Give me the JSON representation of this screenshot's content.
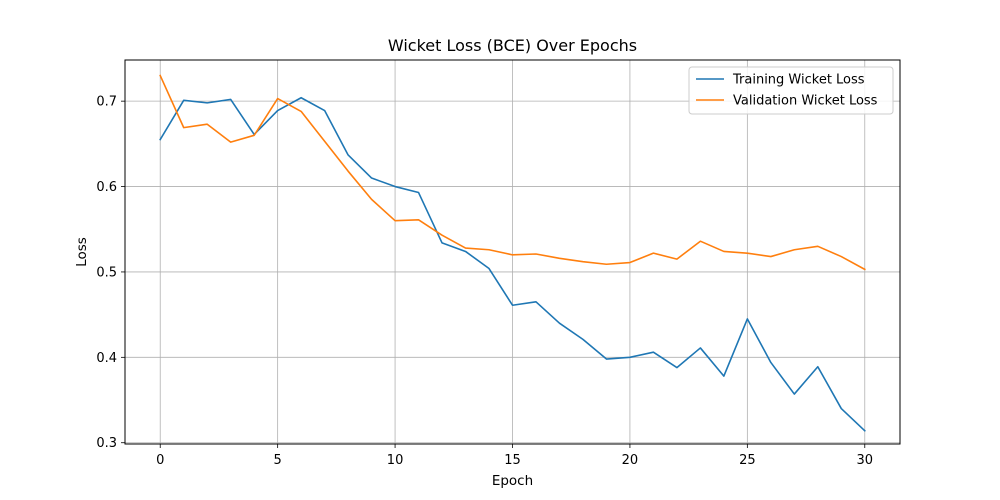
{
  "chart_data": {
    "type": "line",
    "title": "Wicket Loss (BCE) Over Epochs",
    "xlabel": "Epoch",
    "ylabel": "Loss",
    "xlim": [
      -1.5,
      31.5
    ],
    "ylim": [
      0.2985,
      0.7482
    ],
    "xticks": [
      0,
      5,
      10,
      15,
      20,
      25,
      30
    ],
    "xtick_labels": [
      "0",
      "5",
      "10",
      "15",
      "20",
      "25",
      "30"
    ],
    "yticks": [
      0.3,
      0.4,
      0.5,
      0.6,
      0.7
    ],
    "ytick_labels": [
      "0.3",
      "0.4",
      "0.5",
      "0.6",
      "0.7"
    ],
    "grid": true,
    "legend_position": "top-right",
    "x": [
      0,
      1,
      2,
      3,
      4,
      5,
      6,
      7,
      8,
      9,
      10,
      11,
      12,
      13,
      14,
      15,
      16,
      17,
      18,
      19,
      20,
      21,
      22,
      23,
      24,
      25,
      26,
      27,
      28,
      29,
      30
    ],
    "series": [
      {
        "name": "Training Wicket Loss",
        "color": "#1f77b4",
        "values": [
          0.655,
          0.701,
          0.698,
          0.702,
          0.661,
          0.689,
          0.704,
          0.689,
          0.637,
          0.61,
          0.6,
          0.593,
          0.534,
          0.524,
          0.504,
          0.461,
          0.465,
          0.44,
          0.421,
          0.398,
          0.4,
          0.406,
          0.388,
          0.411,
          0.378,
          0.445,
          0.394,
          0.357,
          0.389,
          0.34,
          0.314
        ]
      },
      {
        "name": "Validation Wicket Loss",
        "color": "#ff7f0e",
        "values": [
          0.73,
          0.669,
          0.673,
          0.652,
          0.66,
          0.703,
          0.688,
          0.653,
          0.618,
          0.585,
          0.56,
          0.561,
          0.543,
          0.528,
          0.526,
          0.52,
          0.521,
          0.516,
          0.512,
          0.509,
          0.511,
          0.522,
          0.515,
          0.536,
          0.524,
          0.522,
          0.518,
          0.526,
          0.53,
          0.518,
          0.503
        ]
      }
    ]
  }
}
